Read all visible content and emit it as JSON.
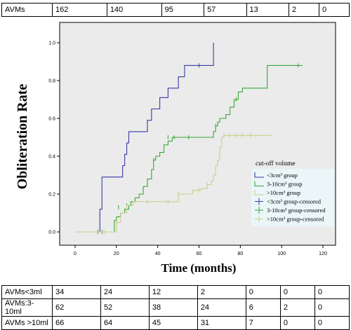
{
  "risk_table_top": {
    "label": "AVMs",
    "values": [
      "162",
      "140",
      "95",
      "57",
      "13",
      "2",
      "0"
    ]
  },
  "risk_table_bottom": {
    "rows": [
      {
        "label": "AVMs<3ml",
        "values": [
          "34",
          "24",
          "12",
          "2",
          "0",
          "0",
          "0"
        ]
      },
      {
        "label": "AVMs:3-10ml",
        "values": [
          "62",
          "52",
          "38",
          "24",
          "6",
          "2",
          "0"
        ]
      },
      {
        "label": "AVMs >10ml",
        "values": [
          "66",
          "64",
          "45",
          "31",
          "7",
          "0",
          "0"
        ]
      }
    ]
  },
  "chart_data": {
    "type": "line",
    "subtype": "step",
    "title": "",
    "xlabel": "Time (months)",
    "ylabel": "Obliteration Rate",
    "xlim": [
      0,
      120
    ],
    "ylim": [
      0,
      1.0
    ],
    "xticks": [
      "0",
      "20",
      "40",
      "60",
      "80",
      "100",
      "120"
    ],
    "yticks": [
      "0.0",
      "0.2",
      "0.4",
      "0.6",
      "0.8",
      "1.0"
    ],
    "grid": false,
    "legend_title": "cut-off volume",
    "legend_position": "bottom-right",
    "legend": [
      {
        "name": "<3cm³ group",
        "color": "#3a3aa6",
        "kind": "line"
      },
      {
        "name": "3-10cm³ group",
        "color": "#3aa63a",
        "kind": "line"
      },
      {
        "name": ">10cm³ group",
        "color": "#c8d08a",
        "kind": "line"
      },
      {
        "name": "<3cm³ group-censored",
        "color": "#3a3aa6",
        "kind": "cross"
      },
      {
        "name": "3-10cm³ group-censored",
        "color": "#3aa63a",
        "kind": "cross"
      },
      {
        "name": ">10cm³ group-censored",
        "color": "#c8d08a",
        "kind": "cross"
      }
    ],
    "series": [
      {
        "name": "<3cm³ group",
        "color": "#3a3aa6",
        "x": [
          0,
          11.5,
          12,
          13,
          22,
          23,
          24,
          25,
          26,
          33,
          35,
          37,
          39,
          41,
          43,
          45,
          47,
          50,
          53,
          55,
          60,
          63,
          65,
          67
        ],
        "y": [
          0,
          0,
          0.12,
          0.29,
          0.29,
          0.35,
          0.41,
          0.47,
          0.53,
          0.53,
          0.59,
          0.65,
          0.65,
          0.71,
          0.71,
          0.76,
          0.76,
          0.82,
          0.88,
          0.88,
          0.88,
          0.88,
          0.88,
          1.0
        ],
        "censored": [
          [
            60,
            0.88
          ]
        ]
      },
      {
        "name": "3-10cm³ group",
        "color": "#3aa63a",
        "x": [
          0,
          17,
          19,
          20,
          22,
          24,
          26,
          27,
          29,
          31,
          33,
          35,
          37,
          38,
          39,
          41,
          43,
          45,
          47,
          50,
          55,
          60,
          63,
          65,
          67,
          68,
          69,
          70,
          73,
          75,
          77,
          79,
          81,
          85,
          89,
          93,
          97,
          110
        ],
        "y": [
          0,
          0,
          0.06,
          0.08,
          0.1,
          0.12,
          0.14,
          0.16,
          0.18,
          0.2,
          0.24,
          0.28,
          0.33,
          0.38,
          0.4,
          0.42,
          0.46,
          0.48,
          0.5,
          0.5,
          0.5,
          0.5,
          0.5,
          0.5,
          0.53,
          0.56,
          0.58,
          0.6,
          0.62,
          0.66,
          0.7,
          0.74,
          0.76,
          0.76,
          0.76,
          0.88,
          0.88,
          0.88
        ],
        "censored": [
          [
            11,
            0
          ],
          [
            13,
            0
          ],
          [
            21,
            0.13
          ],
          [
            25,
            0.14
          ],
          [
            38,
            0.38
          ],
          [
            45,
            0.5
          ],
          [
            48,
            0.5
          ],
          [
            55,
            0.5
          ],
          [
            68,
            0.56
          ],
          [
            78,
            0.7
          ],
          [
            108,
            0.88
          ]
        ]
      },
      {
        "name": ">10cm³ group",
        "color": "#c8d08a",
        "x": [
          0,
          19,
          20,
          22,
          25,
          28,
          35,
          40,
          50,
          55,
          57,
          59,
          61,
          63,
          64,
          66,
          67,
          68,
          69,
          70,
          71,
          72,
          73,
          95
        ],
        "y": [
          0,
          0,
          0.05,
          0.1,
          0.14,
          0.16,
          0.16,
          0.16,
          0.2,
          0.2,
          0.22,
          0.22,
          0.23,
          0.23,
          0.25,
          0.27,
          0.3,
          0.35,
          0.38,
          0.45,
          0.5,
          0.51,
          0.51,
          0.51
        ],
        "censored": [
          [
            14,
            0
          ],
          [
            20,
            0.05
          ],
          [
            35,
            0.16
          ],
          [
            45,
            0.16
          ],
          [
            50,
            0.2
          ],
          [
            60,
            0.22
          ],
          [
            64,
            0.25
          ],
          [
            72,
            0.51
          ],
          [
            75,
            0.51
          ],
          [
            78,
            0.51
          ],
          [
            81,
            0.51
          ],
          [
            85,
            0.51
          ]
        ]
      }
    ]
  }
}
